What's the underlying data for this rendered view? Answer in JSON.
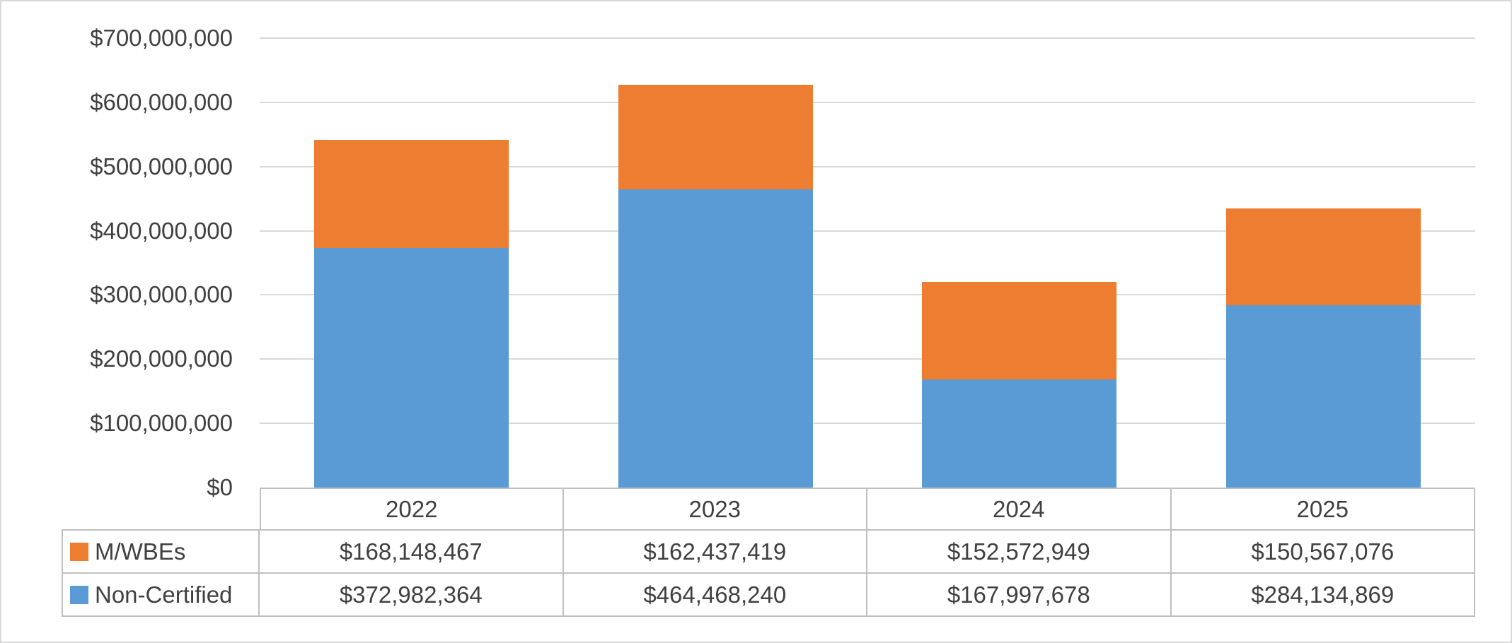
{
  "chart_data": {
    "type": "bar",
    "stacked": true,
    "title": "",
    "categories": [
      "2022",
      "2023",
      "2024",
      "2025"
    ],
    "series": [
      {
        "name": "M/WBEs",
        "color": "#ED7D31",
        "values": [
          168148467,
          162437419,
          152572949,
          150567076
        ],
        "labels": [
          "$168,148,467",
          "$162,437,419",
          "$152,572,949",
          "$150,567,076"
        ]
      },
      {
        "name": "Non-Certified",
        "color": "#5B9BD5",
        "values": [
          372982364,
          464468240,
          167997678,
          284134869
        ],
        "labels": [
          "$372,982,364",
          "$464,468,240",
          "$167,997,678",
          "$284,134,869"
        ]
      }
    ],
    "xlabel": "",
    "ylabel": "",
    "ylim": [
      0,
      700000000
    ],
    "ytick_interval": 100000000,
    "ytick_labels": [
      "$0",
      "$100,000,000",
      "$200,000,000",
      "$300,000,000",
      "$400,000,000",
      "$500,000,000",
      "$600,000,000",
      "$700,000,000"
    ],
    "grid": true,
    "legend_position": "data-table-left",
    "colors": {
      "grid": "#D9D9D9",
      "table_border": "#BFBFBF",
      "axis_text": "#404040"
    }
  }
}
